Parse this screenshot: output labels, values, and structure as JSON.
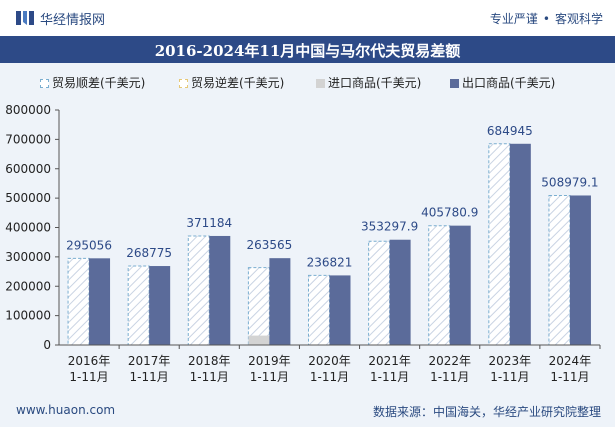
{
  "header": {
    "brand": "华经情报网",
    "tagline_left": "专业严谨",
    "tagline_right": "客观科学"
  },
  "footer": {
    "site": "www.huaon.com",
    "source": "数据来源：中国海关，华经产业研究院整理"
  },
  "colors": {
    "title_bg": "#2d4a87",
    "export_bar": "#5b6b9a",
    "surplus_stroke": "#7aaed0",
    "deficit_stroke": "#e6c979",
    "import_bar": "#d3d3d3",
    "background": "#eef3f9"
  },
  "chart_data": {
    "type": "bar",
    "title": "2016-2024年11月中国与马尔代夫贸易差额",
    "categories": [
      "2016年\n1-11月",
      "2017年\n1-11月",
      "2018年\n1-11月",
      "2019年\n1-11月",
      "2020年\n1-11月",
      "2021年\n1-11月",
      "2022年\n1-11月",
      "2023年\n1-11月",
      "2024年\n1-11月"
    ],
    "series": [
      {
        "name": "贸易顺差(千美元)",
        "values": [
          295056,
          268775,
          371184,
          263565,
          236821,
          353297.9,
          405780.9,
          684945,
          508979.1
        ]
      },
      {
        "name": "贸易逆差(千美元)",
        "values": [
          0,
          0,
          0,
          0,
          0,
          0,
          0,
          0,
          0
        ]
      },
      {
        "name": "进口商品(千美元)",
        "values": [
          0,
          0,
          0,
          32000,
          0,
          0,
          0,
          0,
          0
        ]
      },
      {
        "name": "出口商品(千美元)",
        "values": [
          295100,
          268800,
          371200,
          295600,
          236900,
          358400,
          406300,
          685000,
          509000
        ]
      }
    ],
    "data_labels": [
      "295056",
      "268775",
      "371184",
      "263565",
      "236821",
      "353297.9",
      "405780.9",
      "684945",
      "508979.1"
    ],
    "ylim": [
      0,
      800000
    ],
    "yticks": [
      0,
      100000,
      200000,
      300000,
      400000,
      500000,
      600000,
      700000,
      800000
    ],
    "legend_position": "top",
    "grid": false
  }
}
